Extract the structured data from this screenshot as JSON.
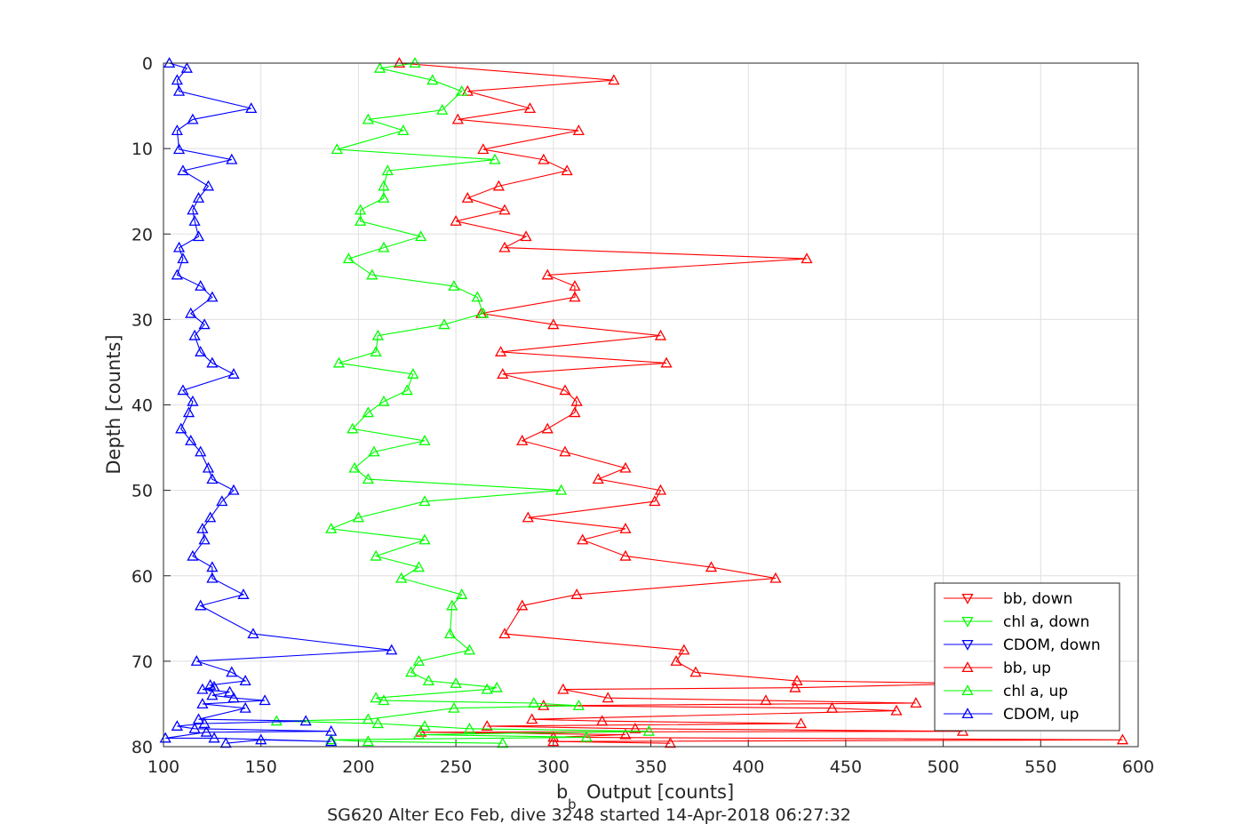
{
  "chart_data": {
    "type": "line",
    "xlabel": "b",
    "xlabel_sub": "b",
    "xlabel_rest": "Output [counts]",
    "ylabel": "Depth [counts]",
    "caption": "SG620 Alter Eco Feb, dive 3248 started 14-Apr-2018 06:27:32",
    "xlim": [
      100,
      600
    ],
    "ylim": [
      0,
      80
    ],
    "y_reversed": true,
    "grid": true,
    "legend_position": "lower-right",
    "x_ticks": [
      "100",
      "150",
      "200",
      "250",
      "300",
      "350",
      "400",
      "450",
      "500",
      "550",
      "600"
    ],
    "y_ticks": [
      "0",
      "10",
      "20",
      "30",
      "40",
      "50",
      "60",
      "70",
      "80"
    ],
    "colors": {
      "red": "#ff0000",
      "green": "#00ff00",
      "blue": "#0000ff"
    },
    "series": [
      {
        "name": "bb, down",
        "color": "#ff0000",
        "marker": "triangle-down",
        "points": []
      },
      {
        "name": "chl a, down",
        "color": "#00ff00",
        "marker": "triangle-down",
        "points": []
      },
      {
        "name": "CDOM, down",
        "color": "#0000ff",
        "marker": "triangle-down",
        "points": []
      },
      {
        "name": "bb, up",
        "color": "#ff0000",
        "marker": "triangle-up",
        "points": [
          [
            221,
            0
          ],
          [
            331,
            2
          ],
          [
            256,
            3.3
          ],
          [
            288,
            5.3
          ],
          [
            251,
            6.6
          ],
          [
            313,
            7.9
          ],
          [
            264,
            10.1
          ],
          [
            295,
            11.3
          ],
          [
            307,
            12.6
          ],
          [
            272,
            14.4
          ],
          [
            256,
            15.8
          ],
          [
            275,
            17.2
          ],
          [
            250,
            18.5
          ],
          [
            286,
            20.3
          ],
          [
            275,
            21.6
          ],
          [
            430,
            22.9
          ],
          [
            297,
            24.8
          ],
          [
            311,
            26.1
          ],
          [
            311,
            27.4
          ],
          [
            263,
            29.3
          ],
          [
            300,
            30.6
          ],
          [
            355,
            31.9
          ],
          [
            273,
            33.8
          ],
          [
            358,
            35.1
          ],
          [
            274,
            36.4
          ],
          [
            306,
            38.3
          ],
          [
            312,
            39.6
          ],
          [
            311,
            40.9
          ],
          [
            297,
            42.8
          ],
          [
            284,
            44.2
          ],
          [
            306,
            45.5
          ],
          [
            337,
            47.4
          ],
          [
            323,
            48.7
          ],
          [
            355,
            50.0
          ],
          [
            352,
            51.3
          ],
          [
            287,
            53.2
          ],
          [
            337,
            54.5
          ],
          [
            315,
            55.8
          ],
          [
            337,
            57.7
          ],
          [
            381,
            59.0
          ],
          [
            414,
            60.3
          ],
          [
            312,
            62.2
          ],
          [
            284,
            63.5
          ],
          [
            275,
            66.8
          ],
          [
            367,
            68.7
          ],
          [
            363,
            70.0
          ],
          [
            373,
            71.3
          ],
          [
            425,
            72.3
          ],
          [
            518,
            72.6
          ],
          [
            424,
            73.1
          ],
          [
            305,
            73.3
          ],
          [
            328,
            74.3
          ],
          [
            409,
            74.6
          ],
          [
            486,
            74.9
          ],
          [
            295,
            75.2
          ],
          [
            443,
            75.5
          ],
          [
            476,
            75.8
          ],
          [
            289,
            76.8
          ],
          [
            325,
            77.0
          ],
          [
            427,
            77.3
          ],
          [
            266,
            77.6
          ],
          [
            342,
            77.9
          ],
          [
            510,
            78.2
          ],
          [
            232,
            78.3
          ],
          [
            337,
            78.6
          ],
          [
            300,
            78.9
          ],
          [
            592,
            79.2
          ],
          [
            300,
            79.4
          ],
          [
            360,
            79.6
          ]
        ]
      },
      {
        "name": "chl a, up",
        "color": "#00ff00",
        "marker": "triangle-up",
        "points": [
          [
            229,
            0
          ],
          [
            211,
            0.6
          ],
          [
            238,
            2
          ],
          [
            253,
            3.3
          ],
          [
            243,
            5.5
          ],
          [
            205,
            6.6
          ],
          [
            223,
            7.9
          ],
          [
            189,
            10.1
          ],
          [
            270,
            11.3
          ],
          [
            215,
            12.6
          ],
          [
            213,
            14.4
          ],
          [
            213,
            15.8
          ],
          [
            201,
            17.2
          ],
          [
            201,
            18.5
          ],
          [
            232,
            20.3
          ],
          [
            213,
            21.6
          ],
          [
            195,
            22.9
          ],
          [
            207,
            24.8
          ],
          [
            249,
            26.1
          ],
          [
            261,
            27.4
          ],
          [
            264,
            29.3
          ],
          [
            244,
            30.6
          ],
          [
            210,
            31.9
          ],
          [
            209,
            33.8
          ],
          [
            190,
            35.1
          ],
          [
            228,
            36.4
          ],
          [
            225,
            38.3
          ],
          [
            213,
            39.6
          ],
          [
            205,
            40.9
          ],
          [
            197,
            42.8
          ],
          [
            234,
            44.2
          ],
          [
            208,
            45.5
          ],
          [
            198,
            47.4
          ],
          [
            205,
            48.7
          ],
          [
            304,
            50.0
          ],
          [
            234,
            51.3
          ],
          [
            200,
            53.2
          ],
          [
            186,
            54.5
          ],
          [
            234,
            55.8
          ],
          [
            209,
            57.7
          ],
          [
            231,
            59.0
          ],
          [
            222,
            60.3
          ],
          [
            253,
            62.2
          ],
          [
            248,
            63.5
          ],
          [
            247,
            66.8
          ],
          [
            257,
            68.7
          ],
          [
            231,
            70.0
          ],
          [
            227,
            71.3
          ],
          [
            236,
            72.3
          ],
          [
            250,
            72.6
          ],
          [
            271,
            73.1
          ],
          [
            266,
            73.3
          ],
          [
            209,
            74.3
          ],
          [
            213,
            74.6
          ],
          [
            290,
            74.9
          ],
          [
            313,
            75.2
          ],
          [
            249,
            75.5
          ],
          [
            205,
            76.8
          ],
          [
            158,
            77.0
          ],
          [
            210,
            77.3
          ],
          [
            234,
            77.6
          ],
          [
            257,
            77.9
          ],
          [
            349,
            78.2
          ],
          [
            231,
            78.6
          ],
          [
            317,
            78.9
          ],
          [
            186,
            79.2
          ],
          [
            205,
            79.4
          ],
          [
            274,
            79.6
          ]
        ]
      },
      {
        "name": "CDOM, up",
        "color": "#0000ff",
        "marker": "triangle-up",
        "points": [
          [
            103,
            0
          ],
          [
            112,
            0.6
          ],
          [
            107,
            2
          ],
          [
            108,
            3.3
          ],
          [
            145,
            5.3
          ],
          [
            115,
            6.6
          ],
          [
            107,
            7.9
          ],
          [
            108,
            10.1
          ],
          [
            135,
            11.3
          ],
          [
            110,
            12.6
          ],
          [
            123,
            14.4
          ],
          [
            118,
            15.8
          ],
          [
            115,
            17.2
          ],
          [
            116,
            18.5
          ],
          [
            118,
            20.3
          ],
          [
            108,
            21.6
          ],
          [
            110,
            22.9
          ],
          [
            107,
            24.8
          ],
          [
            119,
            26.1
          ],
          [
            125,
            27.4
          ],
          [
            114,
            29.3
          ],
          [
            121,
            30.6
          ],
          [
            116,
            31.9
          ],
          [
            119,
            33.8
          ],
          [
            125,
            35.1
          ],
          [
            136,
            36.4
          ],
          [
            110,
            38.3
          ],
          [
            115,
            39.6
          ],
          [
            113,
            40.9
          ],
          [
            109,
            42.8
          ],
          [
            114,
            44.2
          ],
          [
            119,
            45.5
          ],
          [
            123,
            47.4
          ],
          [
            125,
            48.7
          ],
          [
            136,
            50.0
          ],
          [
            130,
            51.3
          ],
          [
            124,
            53.2
          ],
          [
            120,
            54.5
          ],
          [
            121,
            55.8
          ],
          [
            115,
            57.7
          ],
          [
            125,
            59.0
          ],
          [
            125,
            60.3
          ],
          [
            141,
            62.2
          ],
          [
            119,
            63.5
          ],
          [
            146,
            66.8
          ],
          [
            217,
            68.7
          ],
          [
            117,
            70.0
          ],
          [
            135,
            71.3
          ],
          [
            142,
            72.3
          ],
          [
            124,
            72.8
          ],
          [
            126,
            73.0
          ],
          [
            120,
            73.3
          ],
          [
            134,
            73.6
          ],
          [
            125,
            74.0
          ],
          [
            136,
            74.3
          ],
          [
            152,
            74.6
          ],
          [
            120,
            75.0
          ],
          [
            142,
            75.5
          ],
          [
            118,
            76.8
          ],
          [
            173,
            77.0
          ],
          [
            121,
            77.3
          ],
          [
            107,
            77.6
          ],
          [
            116,
            77.9
          ],
          [
            186,
            78.2
          ],
          [
            122,
            78.3
          ],
          [
            101,
            79.0
          ],
          [
            126,
            79.0
          ],
          [
            186,
            79.4
          ],
          [
            150,
            79.2
          ],
          [
            132,
            79.6
          ]
        ]
      }
    ]
  }
}
